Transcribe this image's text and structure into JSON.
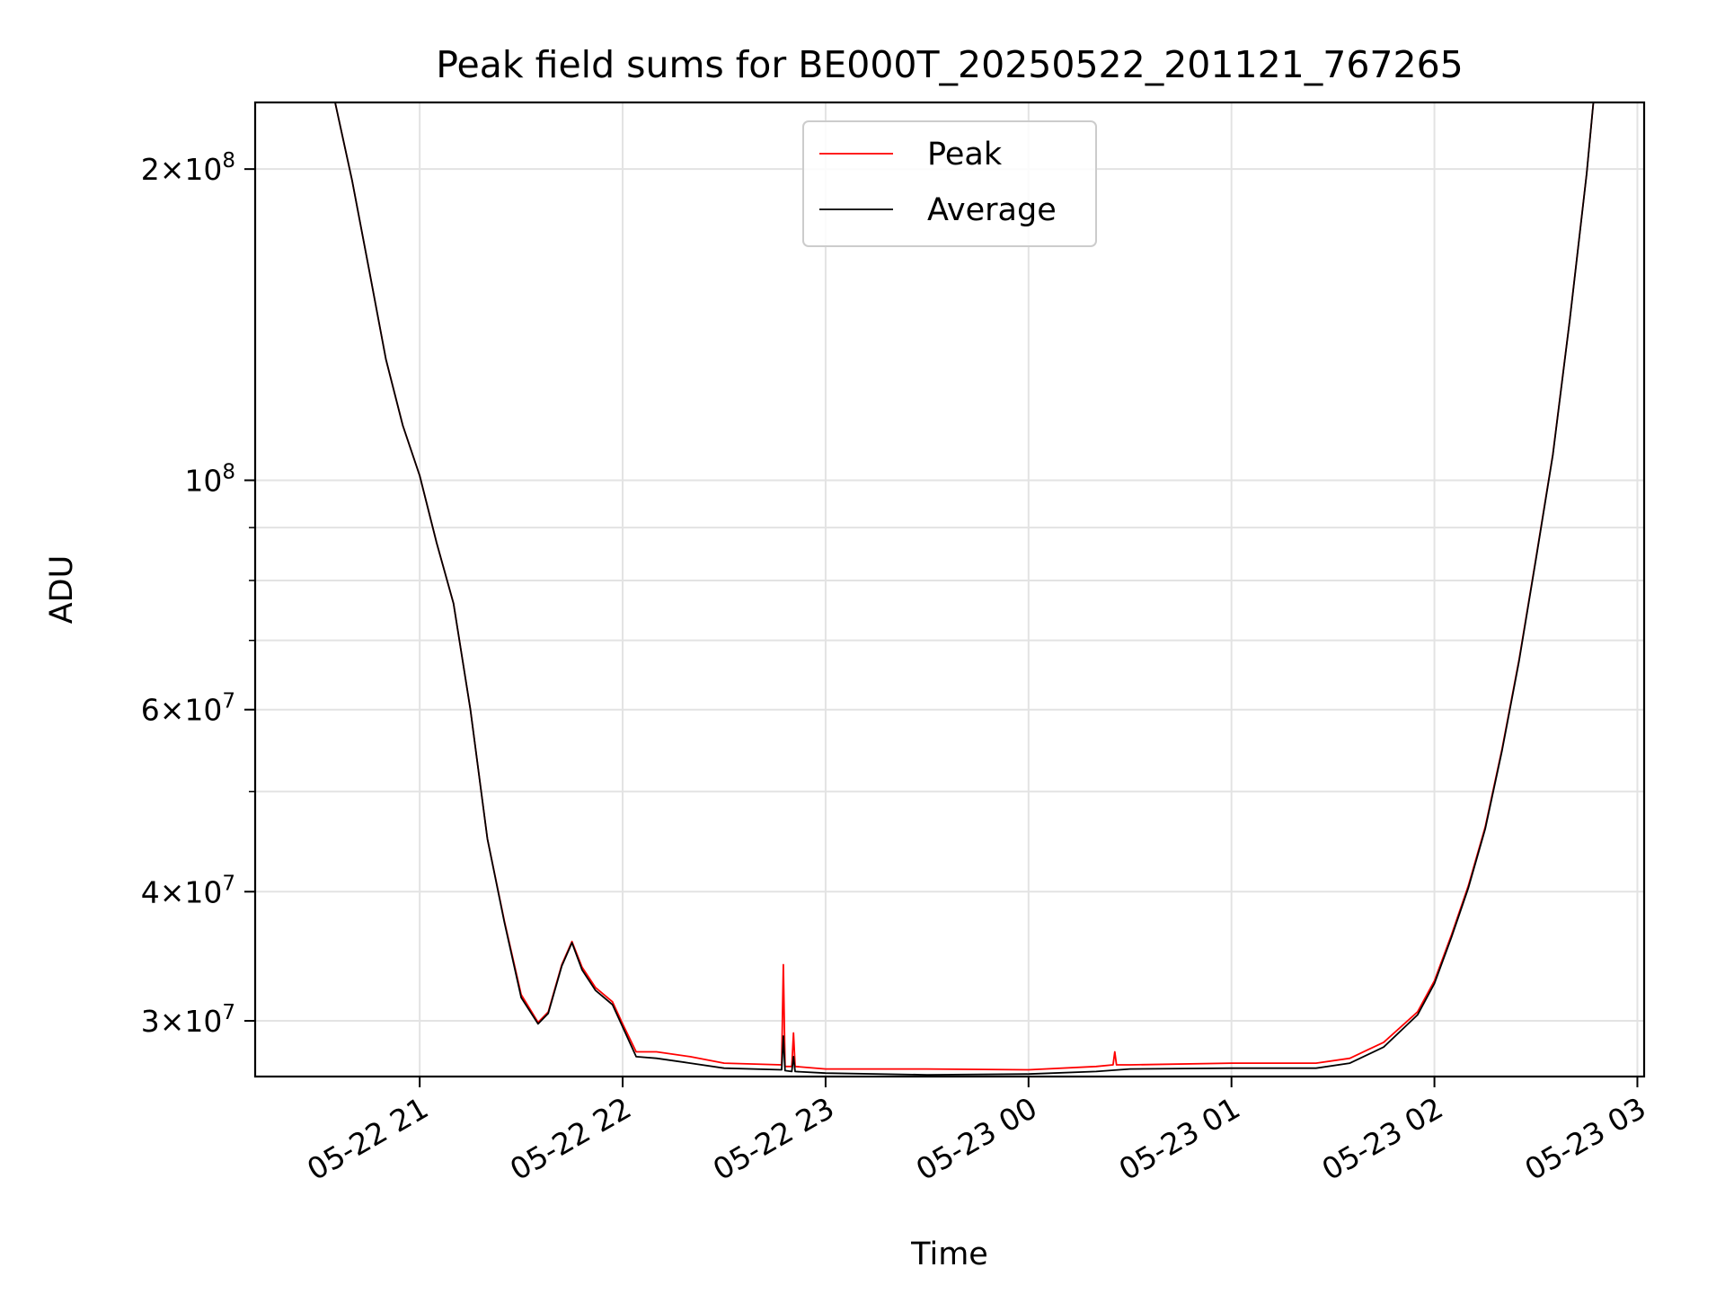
{
  "chart_data": {
    "type": "line",
    "title": "Peak field sums for BE000T_20250522_201121_767265",
    "xlabel": "Time",
    "ylabel": "ADU",
    "yscale": "log",
    "xlim": [
      "2025-05-22 20:11:21",
      "2025-05-23 03:02:00"
    ],
    "ylim": [
      26500000,
      232000000
    ],
    "grid": true,
    "legend_position": "top-center",
    "x_ticks": [
      "2025-05-22 21:00",
      "2025-05-22 22:00",
      "2025-05-22 23:00",
      "2025-05-23 00:00",
      "2025-05-23 01:00",
      "2025-05-23 02:00",
      "2025-05-23 03:00"
    ],
    "x_tick_labels": [
      "05-22 21",
      "05-22 22",
      "05-22 23",
      "05-23 00",
      "05-23 01",
      "05-23 02",
      "05-23 03"
    ],
    "y_major_ticks": [
      30000000,
      40000000,
      60000000,
      100000000,
      200000000
    ],
    "y_major_tick_labels": [
      {
        "mantissa": "3",
        "exp": "7",
        "has_mantissa": true
      },
      {
        "mantissa": "4",
        "exp": "7",
        "has_mantissa": true
      },
      {
        "mantissa": "6",
        "exp": "7",
        "has_mantissa": true
      },
      {
        "mantissa": "",
        "exp": "8",
        "has_mantissa": false
      },
      {
        "mantissa": "2",
        "exp": "8",
        "has_mantissa": true
      }
    ],
    "y_minor_ticks": [
      50000000,
      70000000,
      80000000,
      90000000
    ],
    "series": [
      {
        "name": "Peak",
        "color": "#ff0000",
        "x": [
          "2025-05-22 20:11:21",
          "2025-05-22 20:35",
          "2025-05-22 20:40",
          "2025-05-22 20:45",
          "2025-05-22 20:50",
          "2025-05-22 20:55",
          "2025-05-22 21:00",
          "2025-05-22 21:05",
          "2025-05-22 21:10",
          "2025-05-22 21:15",
          "2025-05-22 21:20",
          "2025-05-22 21:25",
          "2025-05-22 21:30",
          "2025-05-22 21:35",
          "2025-05-22 21:38",
          "2025-05-22 21:42",
          "2025-05-22 21:45",
          "2025-05-22 21:48",
          "2025-05-22 21:52",
          "2025-05-22 21:57",
          "2025-05-22 22:00",
          "2025-05-22 22:04",
          "2025-05-22 22:10",
          "2025-05-22 22:20",
          "2025-05-22 22:30",
          "2025-05-22 22:47",
          "2025-05-22 22:47:30",
          "2025-05-22 22:48",
          "2025-05-22 22:50",
          "2025-05-22 22:50:30",
          "2025-05-22 22:51",
          "2025-05-22 23:00",
          "2025-05-22 23:30",
          "2025-05-23 00:00",
          "2025-05-23 00:20",
          "2025-05-23 00:25",
          "2025-05-23 00:25:30",
          "2025-05-23 00:26",
          "2025-05-23 00:30",
          "2025-05-23 01:00",
          "2025-05-23 01:15",
          "2025-05-23 01:25",
          "2025-05-23 01:35",
          "2025-05-23 01:45",
          "2025-05-23 01:55",
          "2025-05-23 02:00",
          "2025-05-23 02:05",
          "2025-05-23 02:10",
          "2025-05-23 02:15",
          "2025-05-23 02:20",
          "2025-05-23 02:25",
          "2025-05-23 02:30",
          "2025-05-23 02:35",
          "2025-05-23 02:40",
          "2025-05-23 02:45",
          "2025-05-23 02:47",
          "2025-05-23 03:02"
        ],
        "y": [
          232000000,
          232000000,
          195000000,
          160000000,
          131000000,
          113000000,
          101000000,
          87000000,
          76000000,
          60000000,
          45000000,
          37500000,
          31800000,
          29900000,
          30600000,
          34000000,
          35800000,
          33800000,
          32300000,
          31300000,
          29800000,
          28000000,
          28000000,
          27700000,
          27300000,
          27200000,
          34000000,
          27100000,
          27100000,
          29200000,
          27100000,
          26950000,
          26950000,
          26900000,
          27100000,
          27200000,
          28000000,
          27200000,
          27200000,
          27300000,
          27300000,
          27300000,
          27600000,
          28600000,
          30600000,
          32800000,
          36300000,
          40500000,
          46200000,
          55000000,
          67000000,
          84000000,
          106000000,
          143000000,
          198000000,
          232000000,
          232000000
        ]
      },
      {
        "name": "Average",
        "color": "#000000",
        "x": [
          "2025-05-22 20:11:21",
          "2025-05-22 20:35",
          "2025-05-22 20:40",
          "2025-05-22 20:45",
          "2025-05-22 20:50",
          "2025-05-22 20:55",
          "2025-05-22 21:00",
          "2025-05-22 21:05",
          "2025-05-22 21:10",
          "2025-05-22 21:15",
          "2025-05-22 21:20",
          "2025-05-22 21:25",
          "2025-05-22 21:30",
          "2025-05-22 21:35",
          "2025-05-22 21:38",
          "2025-05-22 21:42",
          "2025-05-22 21:45",
          "2025-05-22 21:48",
          "2025-05-22 21:52",
          "2025-05-22 21:57",
          "2025-05-22 22:00",
          "2025-05-22 22:04",
          "2025-05-22 22:10",
          "2025-05-22 22:20",
          "2025-05-22 22:30",
          "2025-05-22 22:47",
          "2025-05-22 22:47:30",
          "2025-05-22 22:48",
          "2025-05-22 22:50",
          "2025-05-22 22:50:30",
          "2025-05-22 22:51",
          "2025-05-22 23:00",
          "2025-05-22 23:30",
          "2025-05-23 00:00",
          "2025-05-23 00:20",
          "2025-05-23 00:30",
          "2025-05-23 01:00",
          "2025-05-23 01:15",
          "2025-05-23 01:25",
          "2025-05-23 01:35",
          "2025-05-23 01:45",
          "2025-05-23 01:55",
          "2025-05-23 02:00",
          "2025-05-23 02:05",
          "2025-05-23 02:10",
          "2025-05-23 02:15",
          "2025-05-23 02:20",
          "2025-05-23 02:25",
          "2025-05-23 02:30",
          "2025-05-23 02:35",
          "2025-05-23 02:40",
          "2025-05-23 02:45",
          "2025-05-23 02:47",
          "2025-05-23 03:02"
        ],
        "y": [
          232000000,
          232000000,
          195000000,
          160000000,
          131000000,
          113000000,
          101000000,
          87000000,
          76000000,
          60000000,
          45000000,
          37400000,
          31600000,
          29800000,
          30500000,
          33900000,
          35700000,
          33600000,
          32100000,
          31100000,
          29600000,
          27700000,
          27600000,
          27300000,
          27000000,
          26900000,
          29000000,
          26850000,
          26800000,
          27700000,
          26800000,
          26700000,
          26600000,
          26650000,
          26800000,
          26950000,
          27000000,
          27000000,
          27000000,
          27300000,
          28300000,
          30400000,
          32600000,
          36100000,
          40300000,
          46000000,
          54800000,
          66800000,
          83800000,
          105800000,
          142800000,
          197800000,
          232000000,
          232000000
        ]
      }
    ]
  }
}
